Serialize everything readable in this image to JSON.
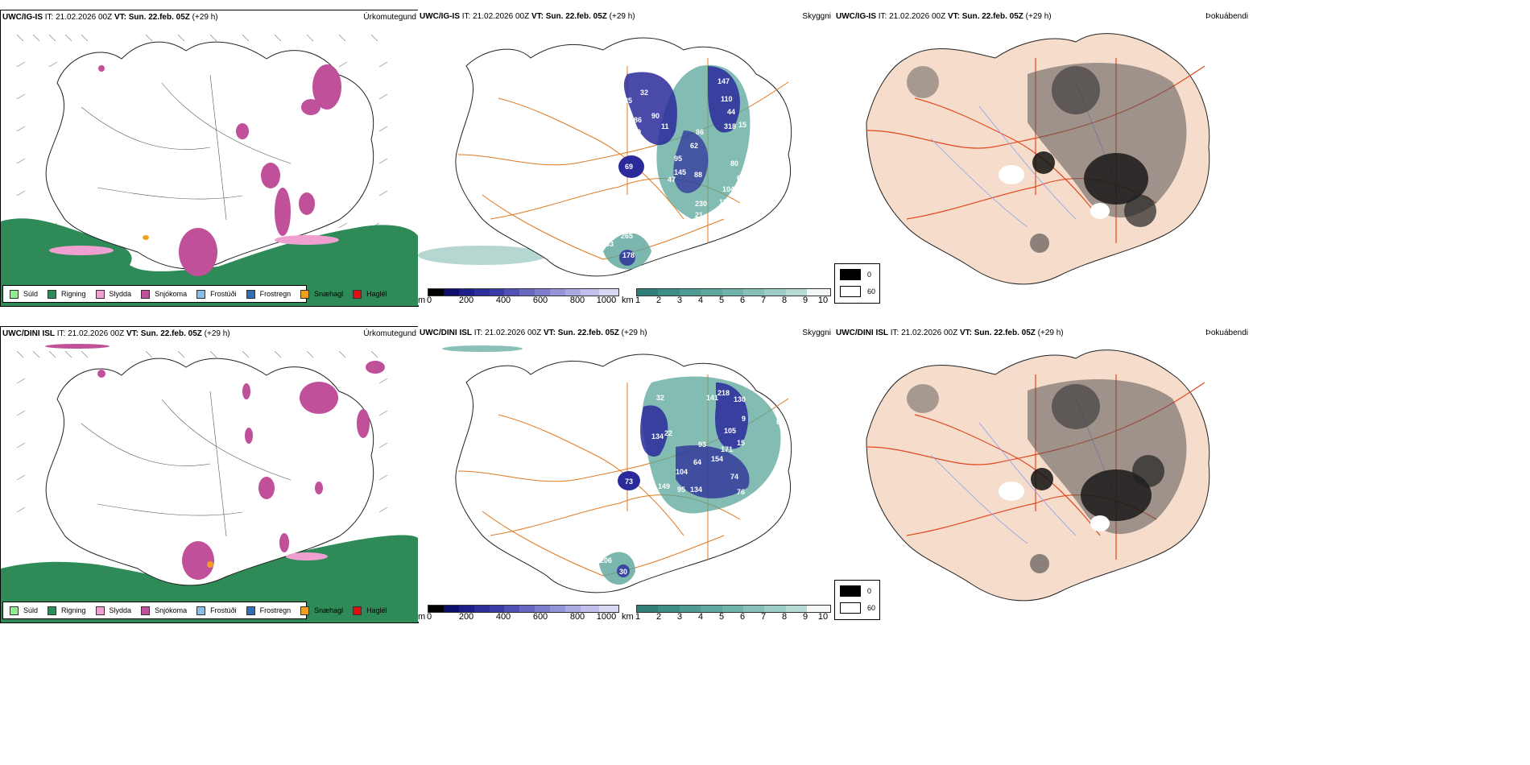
{
  "rows": [
    {
      "model": "UWC/IG-IS",
      "it": "IT: 21.02.2026 00Z",
      "vt": "VT: Sun. 22.feb. 05Z",
      "lead": "(+29 h)",
      "title_precip": "Úrkomutegund",
      "title_vis": "Skyggni",
      "title_fog": "Þokuábendi",
      "vis_labels": [
        "147",
        "263",
        "110",
        "44",
        "318",
        "15",
        "85",
        "32",
        "86",
        "90",
        "9",
        "11",
        "86",
        "62",
        "95",
        "145",
        "88",
        "80",
        "66",
        "69",
        "47",
        "104",
        "11",
        "230",
        "21",
        "265",
        "133",
        "178"
      ]
    },
    {
      "model": "UWC/DINI ISL",
      "it": "IT: 21.02.2026 00Z",
      "vt": "VT: Sun. 22.feb. 05Z",
      "lead": "(+29 h)",
      "title_precip": "Úrkomutegund",
      "title_vis": "Skyggni",
      "title_fog": "Þokuábendi",
      "vis_labels": [
        "218",
        "141",
        "130",
        "32",
        "84",
        "134",
        "22",
        "105",
        "9",
        "93",
        "171",
        "154",
        "15",
        "64",
        "104",
        "73",
        "74",
        "95",
        "134",
        "76",
        "149",
        "206",
        "30"
      ]
    }
  ],
  "precip_legend": [
    {
      "label": "Súld",
      "color": "#90ee90"
    },
    {
      "label": "Rigning",
      "color": "#2e8b57"
    },
    {
      "label": "Slydda",
      "color": "#f0a0d0"
    },
    {
      "label": "Snjókoma",
      "color": "#c0509a"
    },
    {
      "label": "Frostúði",
      "color": "#87bde8"
    },
    {
      "label": "Frostregn",
      "color": "#2f6fb8"
    },
    {
      "label": "Snæhagl",
      "color": "#f0a020"
    },
    {
      "label": "Haglél",
      "color": "#e01010"
    }
  ],
  "ceiling_bar": {
    "unit": "m",
    "ticks": [
      "0",
      "200",
      "400",
      "600",
      "800",
      "1000"
    ]
  },
  "vis_bar": {
    "unit": "km",
    "ticks": [
      "1",
      "2",
      "3",
      "4",
      "5",
      "6",
      "7",
      "8",
      "9",
      "10"
    ]
  },
  "fog_legend": [
    {
      "label": "0",
      "color": "#000000"
    },
    {
      "label": "60",
      "color": "#ffffff"
    }
  ],
  "colors": {
    "rain": "#2e8b57",
    "snow": "#c0509a",
    "sleet": "#f0a0d0",
    "ice_pellets": "#f0a020",
    "low_cloud": "#2a2a9a",
    "vis": "#5aa59a",
    "roads": "#e07820",
    "land_fog": "#f6dccb",
    "fog_roads": "#e04a20",
    "fog_rivers": "#8aa0f0"
  }
}
